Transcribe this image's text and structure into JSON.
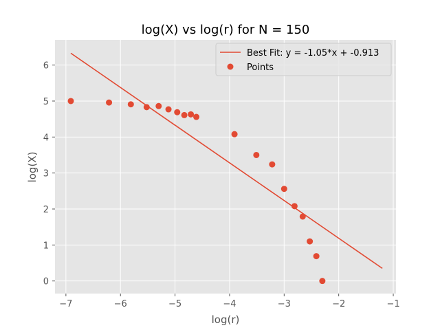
{
  "chart_data": {
    "type": "scatter",
    "title": "log(X) vs log(r) for N = 150",
    "xlabel": "log(r)",
    "ylabel": "log(X)",
    "xlim": [
      -7.2,
      -0.95
    ],
    "ylim": [
      -0.35,
      6.7
    ],
    "xticks": [
      -7,
      -6,
      -5,
      -4,
      -3,
      -2,
      -1
    ],
    "yticks": [
      0,
      1,
      2,
      3,
      4,
      5,
      6
    ],
    "x_tick_labels": [
      "−7",
      "−6",
      "−5",
      "−4",
      "−3",
      "−2",
      "−1"
    ],
    "y_tick_labels": [
      "0",
      "1",
      "2",
      "3",
      "4",
      "5",
      "6"
    ],
    "grid": true,
    "legend_position": "upper-right",
    "colors": {
      "series": "#E24A33",
      "plot_background": "#E5E5E5",
      "grid": "#FFFFFF"
    },
    "series": [
      {
        "name": "Best Fit: y = -1.05*x + -0.913",
        "type": "line",
        "x": [
          -6.91,
          -1.2
        ],
        "y": [
          6.33,
          0.35
        ]
      },
      {
        "name": "Points",
        "type": "scatter",
        "x": [
          -6.91,
          -6.21,
          -5.81,
          -5.52,
          -5.3,
          -5.12,
          -4.96,
          -4.83,
          -4.71,
          -4.61,
          -3.91,
          -3.51,
          -3.22,
          -3.0,
          -2.81,
          -2.66,
          -2.53,
          -2.41,
          -2.3
        ],
        "y": [
          5.0,
          4.96,
          4.91,
          4.83,
          4.86,
          4.77,
          4.69,
          4.61,
          4.63,
          4.56,
          4.08,
          3.5,
          3.24,
          2.56,
          2.08,
          1.79,
          1.1,
          0.69,
          0.0
        ]
      }
    ]
  }
}
